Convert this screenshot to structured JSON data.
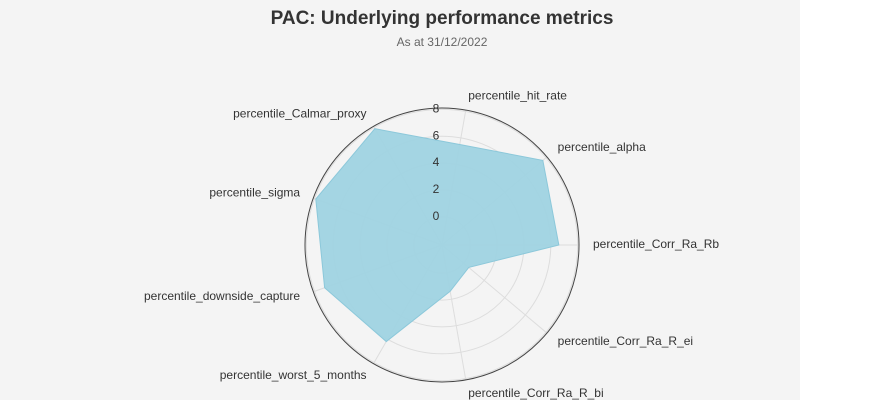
{
  "chart_data": {
    "type": "radar",
    "title": "PAC: Underlying performance metrics",
    "subtitle": "As at 31/12/2022",
    "categories": [
      "percentile_hit_rate",
      "percentile_alpha",
      "percentile_Corr_Ra_Rb",
      "percentile_Corr_Ra_R_ei",
      "percentile_Corr_Ra_R_bi",
      "percentile_worst_5_months",
      "percentile_downside_capture",
      "percentile_sigma",
      "percentile_Calmar_proxy"
    ],
    "values": [
      5.5,
      7.7,
      6.6,
      0.5,
      1.4,
      6.2,
      7.2,
      7.9,
      7.9
    ],
    "color": "#9fd3e2",
    "rlim": [
      -2.1,
      8.1
    ],
    "rticks": [
      0,
      2,
      4,
      6,
      8
    ],
    "grid": true
  }
}
